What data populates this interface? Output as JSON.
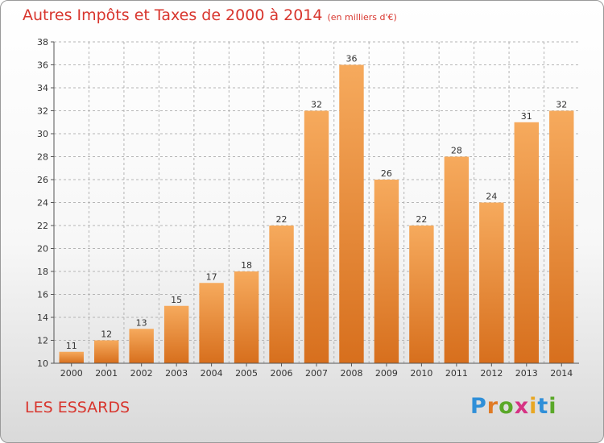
{
  "header": {
    "title": "Autres Impôts et Taxes de 2000 à 2014",
    "unit": "(en milliers d'€)"
  },
  "footer": {
    "place": "LES ESSARDS",
    "logo_text": "Proxiti"
  },
  "colors": {
    "bar_top": "#f6aa5d",
    "bar_bottom": "#d76f1d",
    "title": "#d8352d",
    "grid": "#b5b5b5"
  },
  "chart_data": {
    "type": "bar",
    "categories": [
      "2000",
      "2001",
      "2002",
      "2003",
      "2004",
      "2005",
      "2006",
      "2007",
      "2008",
      "2009",
      "2010",
      "2011",
      "2012",
      "2013",
      "2014"
    ],
    "values": [
      11,
      12,
      13,
      15,
      17,
      18,
      22,
      32,
      36,
      26,
      22,
      28,
      24,
      31,
      32
    ],
    "title": "Autres Impôts et Taxes de 2000 à 2014",
    "xlabel": "",
    "ylabel": "",
    "ylim": [
      10,
      38
    ],
    "yticks": [
      10,
      12,
      14,
      16,
      18,
      20,
      22,
      24,
      26,
      28,
      30,
      32,
      34,
      36,
      38
    ],
    "grid": true,
    "data_labels": true
  }
}
